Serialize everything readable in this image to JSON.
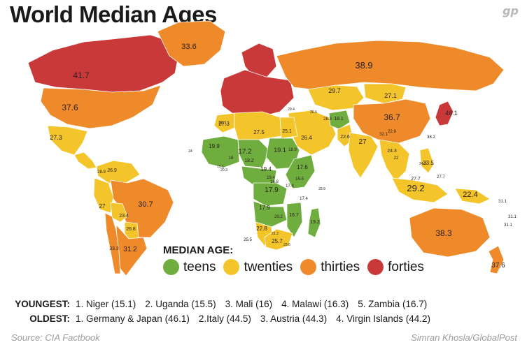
{
  "title": "World Median Ages",
  "logo_text": "gp",
  "legend": {
    "title": "MEDIAN AGE:",
    "items": [
      {
        "label": "teens",
        "color": "#6fae3e"
      },
      {
        "label": "twenties",
        "color": "#f4c52a"
      },
      {
        "label": "thirties",
        "color": "#ef8a2b"
      },
      {
        "label": "forties",
        "color": "#c9393a"
      }
    ]
  },
  "rankings": {
    "youngest_label": "YOUNGEST:",
    "youngest": [
      "1. Niger (15.1)",
      "2. Uganda (15.5)",
      "3. Mali (16)",
      "4. Malawi (16.3)",
      "5. Zambia (16.7)"
    ],
    "oldest_label": "OLDEST:",
    "oldest": [
      "1. Germany & Japan (46.1)",
      "2.Italy (44.5)",
      "3. Austria (44.3)",
      "4. Virgin Islands (44.2)"
    ]
  },
  "source": "Source: CIA Factbook",
  "credit": "Simran Khosla/GlobalPost",
  "regions": [
    {
      "name": "canada",
      "bracket": "forties",
      "label": "41.7"
    },
    {
      "name": "greenland",
      "bracket": "thirties",
      "label": "33.6"
    },
    {
      "name": "usa",
      "bracket": "thirties",
      "label": "37.6"
    },
    {
      "name": "mexico",
      "bracket": "twenties",
      "label": "27.3"
    },
    {
      "name": "central-america",
      "bracket": "twenties",
      "label": ""
    },
    {
      "name": "colombia-venezuela",
      "bracket": "twenties",
      "label": "26.9"
    },
    {
      "name": "peru",
      "bracket": "twenties",
      "label": "27"
    },
    {
      "name": "brazil",
      "bracket": "thirties",
      "label": "30.7"
    },
    {
      "name": "bolivia",
      "bracket": "twenties",
      "label": "23.4"
    },
    {
      "name": "paraguay",
      "bracket": "twenties",
      "label": "26.8"
    },
    {
      "name": "argentina",
      "bracket": "thirties",
      "label": "31.2"
    },
    {
      "name": "chile",
      "bracket": "thirties",
      "label": "33.3"
    },
    {
      "name": "west-europe",
      "bracket": "forties",
      "label": ""
    },
    {
      "name": "scandinavia",
      "bracket": "forties",
      "label": ""
    },
    {
      "name": "russia",
      "bracket": "thirties",
      "label": "38.9"
    },
    {
      "name": "kazakhstan",
      "bracket": "twenties",
      "label": "29.7"
    },
    {
      "name": "mongolia",
      "bracket": "twenties",
      "label": "27.1"
    },
    {
      "name": "china",
      "bracket": "thirties",
      "label": "36.7"
    },
    {
      "name": "japan",
      "bracket": "forties",
      "label": "46.1"
    },
    {
      "name": "middle-east",
      "bracket": "twenties",
      "label": "26.4"
    },
    {
      "name": "afghanistan",
      "bracket": "teens",
      "label": "18.1"
    },
    {
      "name": "pakistan",
      "bracket": "twenties",
      "label": "22.6"
    },
    {
      "name": "india",
      "bracket": "twenties",
      "label": "27"
    },
    {
      "name": "southeast-asia",
      "bracket": "twenties",
      "label": "24.3"
    },
    {
      "name": "philippines",
      "bracket": "twenties",
      "label": "23.5"
    },
    {
      "name": "indonesia",
      "bracket": "twenties",
      "label": "29.2"
    },
    {
      "name": "papua",
      "bracket": "twenties",
      "label": "22.4"
    },
    {
      "name": "australia",
      "bracket": "thirties",
      "label": "38.3"
    },
    {
      "name": "new-zealand",
      "bracket": "thirties",
      "label": "37.6"
    },
    {
      "name": "north-africa",
      "bracket": "twenties",
      "label": "27.5"
    },
    {
      "name": "morocco",
      "bracket": "twenties",
      "label": "27.3"
    },
    {
      "name": "egypt",
      "bracket": "twenties",
      "label": "25.1"
    },
    {
      "name": "west-africa",
      "bracket": "teens",
      "label": "19.9"
    },
    {
      "name": "sahel",
      "bracket": "teens",
      "label": "17.2"
    },
    {
      "name": "sudan",
      "bracket": "teens",
      "label": "19.1"
    },
    {
      "name": "central-africa",
      "bracket": "teens",
      "label": "19.4"
    },
    {
      "name": "drc",
      "bracket": "teens",
      "label": "17.9"
    },
    {
      "name": "east-africa",
      "bracket": "teens",
      "label": "17.6"
    },
    {
      "name": "angola-zambia",
      "bracket": "teens",
      "label": "17.9"
    },
    {
      "name": "mozambique",
      "bracket": "teens",
      "label": "16.7"
    },
    {
      "name": "namibia",
      "bracket": "twenties",
      "label": "22.8"
    },
    {
      "name": "south-africa",
      "bracket": "twenties",
      "label": "25.7"
    },
    {
      "name": "madagascar",
      "bracket": "teens",
      "label": "19.2"
    }
  ],
  "extra_labels": [
    "15.1",
    "16",
    "18.2",
    "17.4",
    "20.2",
    "19.4",
    "16.8",
    "17.4",
    "15.5",
    "18.9",
    "28.1",
    "28.3",
    "29.4",
    "26.6",
    "24",
    "27.7",
    "22",
    "24.9",
    "33.9",
    "31.1",
    "31.1",
    "31.1",
    "20.3",
    "28.9",
    "25.5",
    "21.2",
    "23.6",
    "38.2",
    "27.7",
    "32.1",
    "22.9"
  ]
}
